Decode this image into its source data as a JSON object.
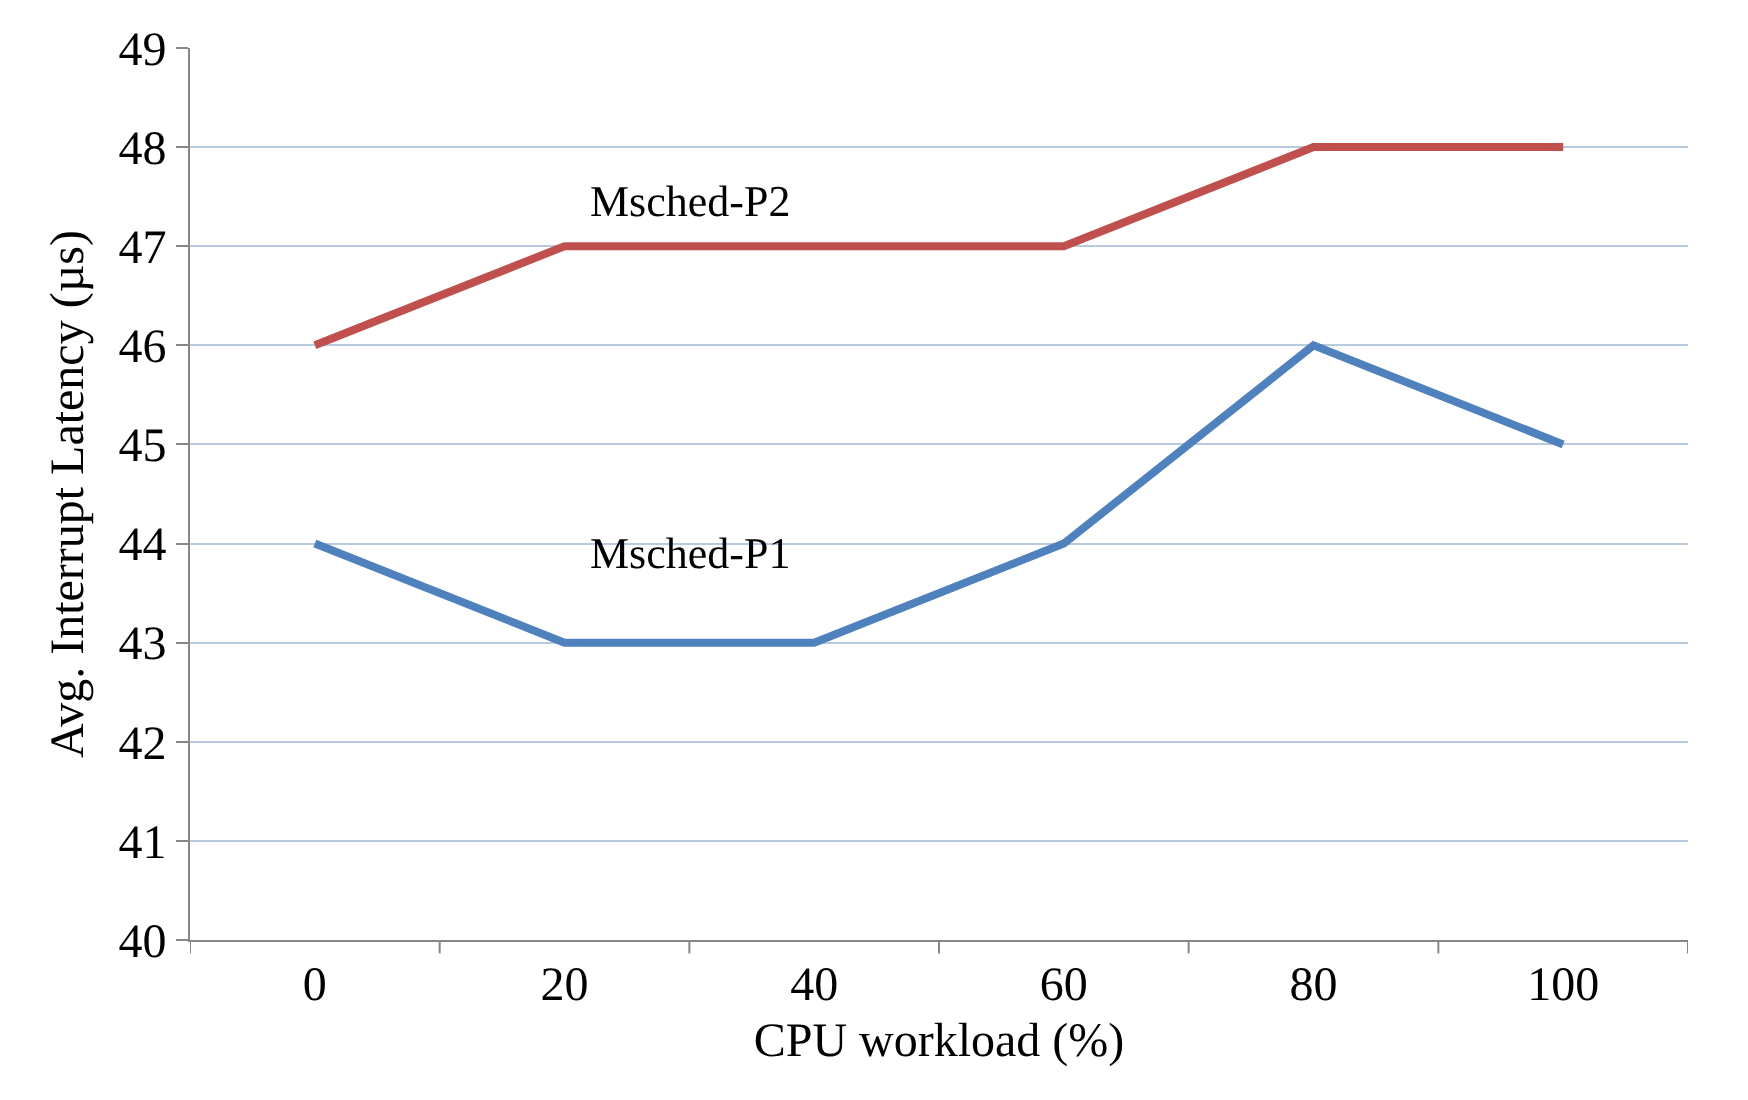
{
  "chart_data": {
    "type": "line",
    "xlabel": "CPU workload (%)",
    "ylabel": "Avg. Interrupt Latency (µs)",
    "categories": [
      "0",
      "20",
      "40",
      "60",
      "80",
      "100"
    ],
    "series": [
      {
        "name": "Msched-P2",
        "color": "#c0504d",
        "values": [
          46,
          47,
          47,
          47,
          48,
          48
        ]
      },
      {
        "name": "Msched-P1",
        "color": "#4f81bd",
        "values": [
          44,
          43,
          43,
          44,
          46,
          45
        ]
      }
    ],
    "ylim": [
      40,
      49
    ],
    "yticks": [
      40,
      41,
      42,
      43,
      44,
      45,
      46,
      47,
      48,
      49
    ],
    "grid": "y",
    "legend": false,
    "marker": "none",
    "line_style": "solid"
  }
}
